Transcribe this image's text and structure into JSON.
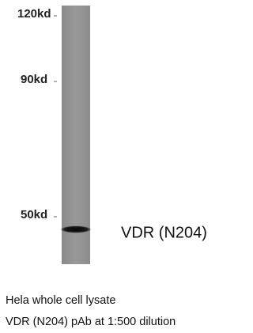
{
  "markers": [
    "120kd",
    "90kd",
    "50kd"
  ],
  "band_label": "VDR (N204)",
  "caption": [
    "Hela whole cell lysate",
    "VDR (N204) pAb at 1:500 dilution"
  ]
}
